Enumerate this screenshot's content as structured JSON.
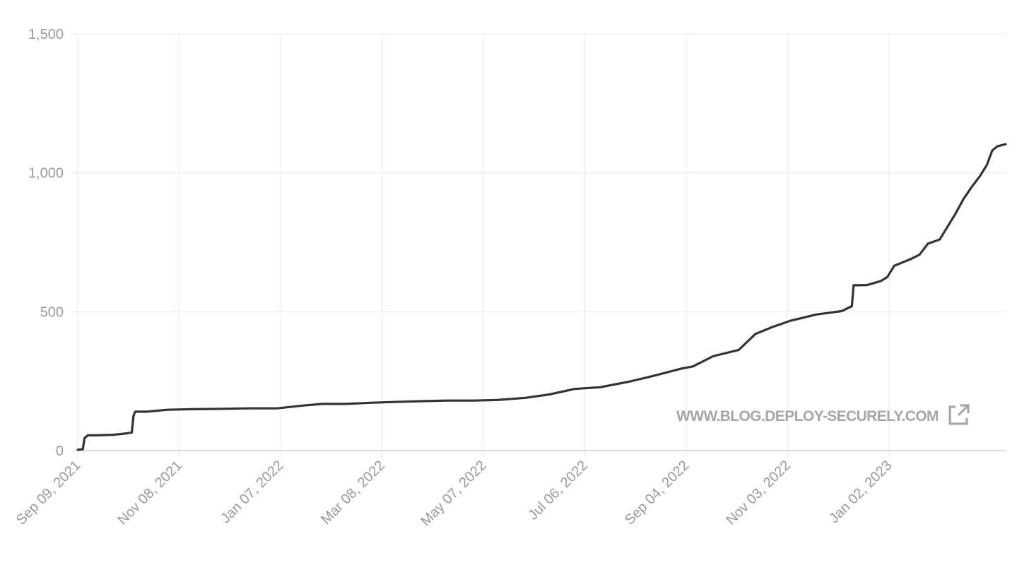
{
  "chart_data": {
    "type": "line",
    "title": "",
    "xlabel": "",
    "ylabel": "",
    "ylim": [
      0,
      1500
    ],
    "xlim": [
      "2021-09-09",
      "2023-03-12"
    ],
    "grid": true,
    "y_ticks": [
      0,
      500,
      1000,
      1500
    ],
    "y_tick_labels": [
      "0",
      "500",
      "1,000",
      "1,500"
    ],
    "x_ticks": [
      "2021-09-09",
      "2021-11-08",
      "2022-01-07",
      "2022-03-08",
      "2022-05-07",
      "2022-07-06",
      "2022-09-04",
      "2022-11-03",
      "2023-01-02"
    ],
    "x_tick_labels": [
      "Sep 09, 2021",
      "Nov 08, 2021",
      "Jan 07, 2022",
      "Mar 08, 2022",
      "May 07, 2022",
      "Jul 06, 2022",
      "Sep 04, 2022",
      "Nov 03, 2022",
      "Jan 02, 2023"
    ],
    "line_color": "#333333",
    "series": [
      {
        "x": [
          "2021-09-09",
          "2021-09-12",
          "2021-09-13",
          "2021-09-15",
          "2021-09-20",
          "2021-09-30",
          "2021-10-08",
          "2021-10-11",
          "2021-10-12",
          "2021-10-13",
          "2021-10-20",
          "2021-11-01",
          "2021-11-15",
          "2021-12-01",
          "2021-12-20",
          "2022-01-05",
          "2022-01-20",
          "2022-02-01",
          "2022-02-15",
          "2022-03-01",
          "2022-03-15",
          "2022-04-01",
          "2022-04-15",
          "2022-05-01",
          "2022-05-15",
          "2022-06-01",
          "2022-06-15",
          "2022-06-30",
          "2022-07-15",
          "2022-08-01",
          "2022-08-15",
          "2022-09-01",
          "2022-09-08",
          "2022-09-20",
          "2022-09-30",
          "2022-10-05",
          "2022-10-15",
          "2022-10-25",
          "2022-11-05",
          "2022-11-20",
          "2022-12-05",
          "2022-12-11",
          "2022-12-12",
          "2022-12-20",
          "2022-12-28",
          "2023-01-01",
          "2023-01-05",
          "2023-01-15",
          "2023-01-20",
          "2023-01-25",
          "2023-02-01",
          "2023-02-05",
          "2023-02-10",
          "2023-02-15",
          "2023-02-20",
          "2023-02-25",
          "2023-03-01",
          "2023-03-04",
          "2023-03-07",
          "2023-03-10",
          "2023-03-12"
        ],
        "y": [
          3,
          5,
          45,
          55,
          55,
          57,
          62,
          65,
          125,
          140,
          140,
          147,
          149,
          150,
          152,
          152,
          162,
          168,
          168,
          172,
          175,
          178,
          180,
          180,
          182,
          190,
          202,
          222,
          228,
          248,
          268,
          295,
          303,
          340,
          355,
          362,
          420,
          445,
          468,
          490,
          502,
          520,
          595,
          596,
          610,
          625,
          665,
          690,
          705,
          745,
          760,
          800,
          850,
          905,
          950,
          990,
          1030,
          1080,
          1095,
          1100,
          1103
        ]
      }
    ]
  },
  "watermark": {
    "text": "WWW.BLOG.DEPLOY-SECURELY.COM",
    "icon": "external-link-icon",
    "color": "#a6a6a6"
  }
}
